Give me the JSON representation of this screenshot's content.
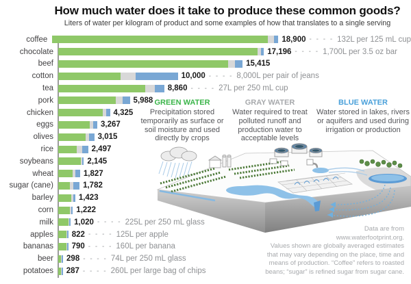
{
  "title": "How much water does it take to produce these common goods?",
  "subtitle": "Liters of water per kilogram of product and some examples of how that translates to a single serving",
  "chart_data": {
    "type": "bar",
    "orientation": "horizontal",
    "value_unit": "liters of water per kilogram of product",
    "max_value": 18900,
    "axis": "categories on left, stacked bars of green/gray/blue water",
    "dash_connector": "- - - -",
    "colors": {
      "green_water": "#8fc868",
      "gray_water": "#d8d8d8",
      "blue_water": "#79a7d4"
    },
    "items": [
      {
        "label": "coffee",
        "value": 18900,
        "value_display": "18,900",
        "annotation": "132L per 125 mL cup",
        "split": {
          "green": 0.955,
          "gray": 0.025,
          "blue": 0.02
        }
      },
      {
        "label": "chocolate",
        "value": 17196,
        "value_display": "17,196",
        "annotation": "1,700L per 3.5 oz bar",
        "split": {
          "green": 0.97,
          "gray": 0.015,
          "blue": 0.015
        }
      },
      {
        "label": "beef",
        "value": 15415,
        "value_display": "15,415",
        "annotation": null,
        "split": {
          "green": 0.92,
          "gray": 0.04,
          "blue": 0.04
        }
      },
      {
        "label": "cotton",
        "value": 10000,
        "value_display": "10,000",
        "annotation": "8,000L per pair of jeans",
        "split": {
          "green": 0.52,
          "gray": 0.13,
          "blue": 0.35
        }
      },
      {
        "label": "tea",
        "value": 8860,
        "value_display": "8,860",
        "annotation": "27L per 250 mL cup",
        "split": {
          "green": 0.82,
          "gray": 0.09,
          "blue": 0.09
        }
      },
      {
        "label": "pork",
        "value": 5988,
        "value_display": "5,988",
        "annotation": null,
        "split": {
          "green": 0.8,
          "gray": 0.1,
          "blue": 0.1
        }
      },
      {
        "label": "chicken",
        "value": 4325,
        "value_display": "4,325",
        "annotation": null,
        "split": {
          "green": 0.86,
          "gray": 0.07,
          "blue": 0.07
        }
      },
      {
        "label": "eggs",
        "value": 3267,
        "value_display": "3,267",
        "annotation": null,
        "split": {
          "green": 0.8,
          "gray": 0.1,
          "blue": 0.1
        }
      },
      {
        "label": "olives",
        "value": 3015,
        "value_display": "3,015",
        "annotation": null,
        "split": {
          "green": 0.76,
          "gray": 0.1,
          "blue": 0.14
        }
      },
      {
        "label": "rice",
        "value": 2497,
        "value_display": "2,497",
        "annotation": null,
        "split": {
          "green": 0.63,
          "gray": 0.17,
          "blue": 0.2
        }
      },
      {
        "label": "soybeans",
        "value": 2145,
        "value_display": "2,145",
        "annotation": null,
        "split": {
          "green": 0.88,
          "gray": 0.05,
          "blue": 0.07
        }
      },
      {
        "label": "wheat",
        "value": 1827,
        "value_display": "1,827",
        "annotation": null,
        "split": {
          "green": 0.67,
          "gray": 0.1,
          "blue": 0.23
        }
      },
      {
        "label": "sugar (cane)",
        "value": 1782,
        "value_display": "1,782",
        "annotation": null,
        "split": {
          "green": 0.55,
          "gray": 0.15,
          "blue": 0.3
        }
      },
      {
        "label": "barley",
        "value": 1423,
        "value_display": "1,423",
        "annotation": null,
        "split": {
          "green": 0.76,
          "gray": 0.12,
          "blue": 0.12
        }
      },
      {
        "label": "corn",
        "value": 1222,
        "value_display": "1,222",
        "annotation": null,
        "split": {
          "green": 0.82,
          "gray": 0.09,
          "blue": 0.09
        }
      },
      {
        "label": "milk",
        "value": 1020,
        "value_display": "1,020",
        "annotation": "225L per 250 mL glass",
        "split": {
          "green": 0.85,
          "gray": 0.07,
          "blue": 0.08
        }
      },
      {
        "label": "apples",
        "value": 822,
        "value_display": "822",
        "annotation": "125L per apple",
        "split": {
          "green": 0.82,
          "gray": 0.06,
          "blue": 0.12
        }
      },
      {
        "label": "bananas",
        "value": 790,
        "value_display": "790",
        "annotation": "160L per banana",
        "split": {
          "green": 0.84,
          "gray": 0.06,
          "blue": 0.1
        }
      },
      {
        "label": "beer",
        "value": 298,
        "value_display": "298",
        "annotation": "74L per 250 mL glass",
        "split": {
          "green": 0.78,
          "gray": 0.1,
          "blue": 0.12
        }
      },
      {
        "label": "potatoes",
        "value": 287,
        "value_display": "287",
        "annotation": "260L per large bag of chips",
        "split": {
          "green": 0.75,
          "gray": 0.1,
          "blue": 0.15
        }
      }
    ]
  },
  "legend": {
    "green": {
      "heading": "GREEN WATER",
      "color": "#3bb54a",
      "body": "Precipitation stored temporarily as surface or soil moisture and used directly by crops"
    },
    "gray": {
      "heading": "GRAY WATER",
      "color": "#a7a9ac",
      "body": "Water required to treat polluted runoff and production water to acceptable levels"
    },
    "blue": {
      "heading": "BLUE WATER",
      "color": "#4aa0da",
      "body": "Water stored in lakes, rivers or aquifers and used during irrigation or production"
    }
  },
  "footnote": {
    "lines": [
      "Data are from",
      "www.waterfootprint.org.",
      "Values shown are globally averaged estimates",
      "that may vary depending on the place, time and",
      "means of production. “Coffee” refers to roasted",
      "beans; “sugar” is refined sugar from sugar cane."
    ]
  }
}
